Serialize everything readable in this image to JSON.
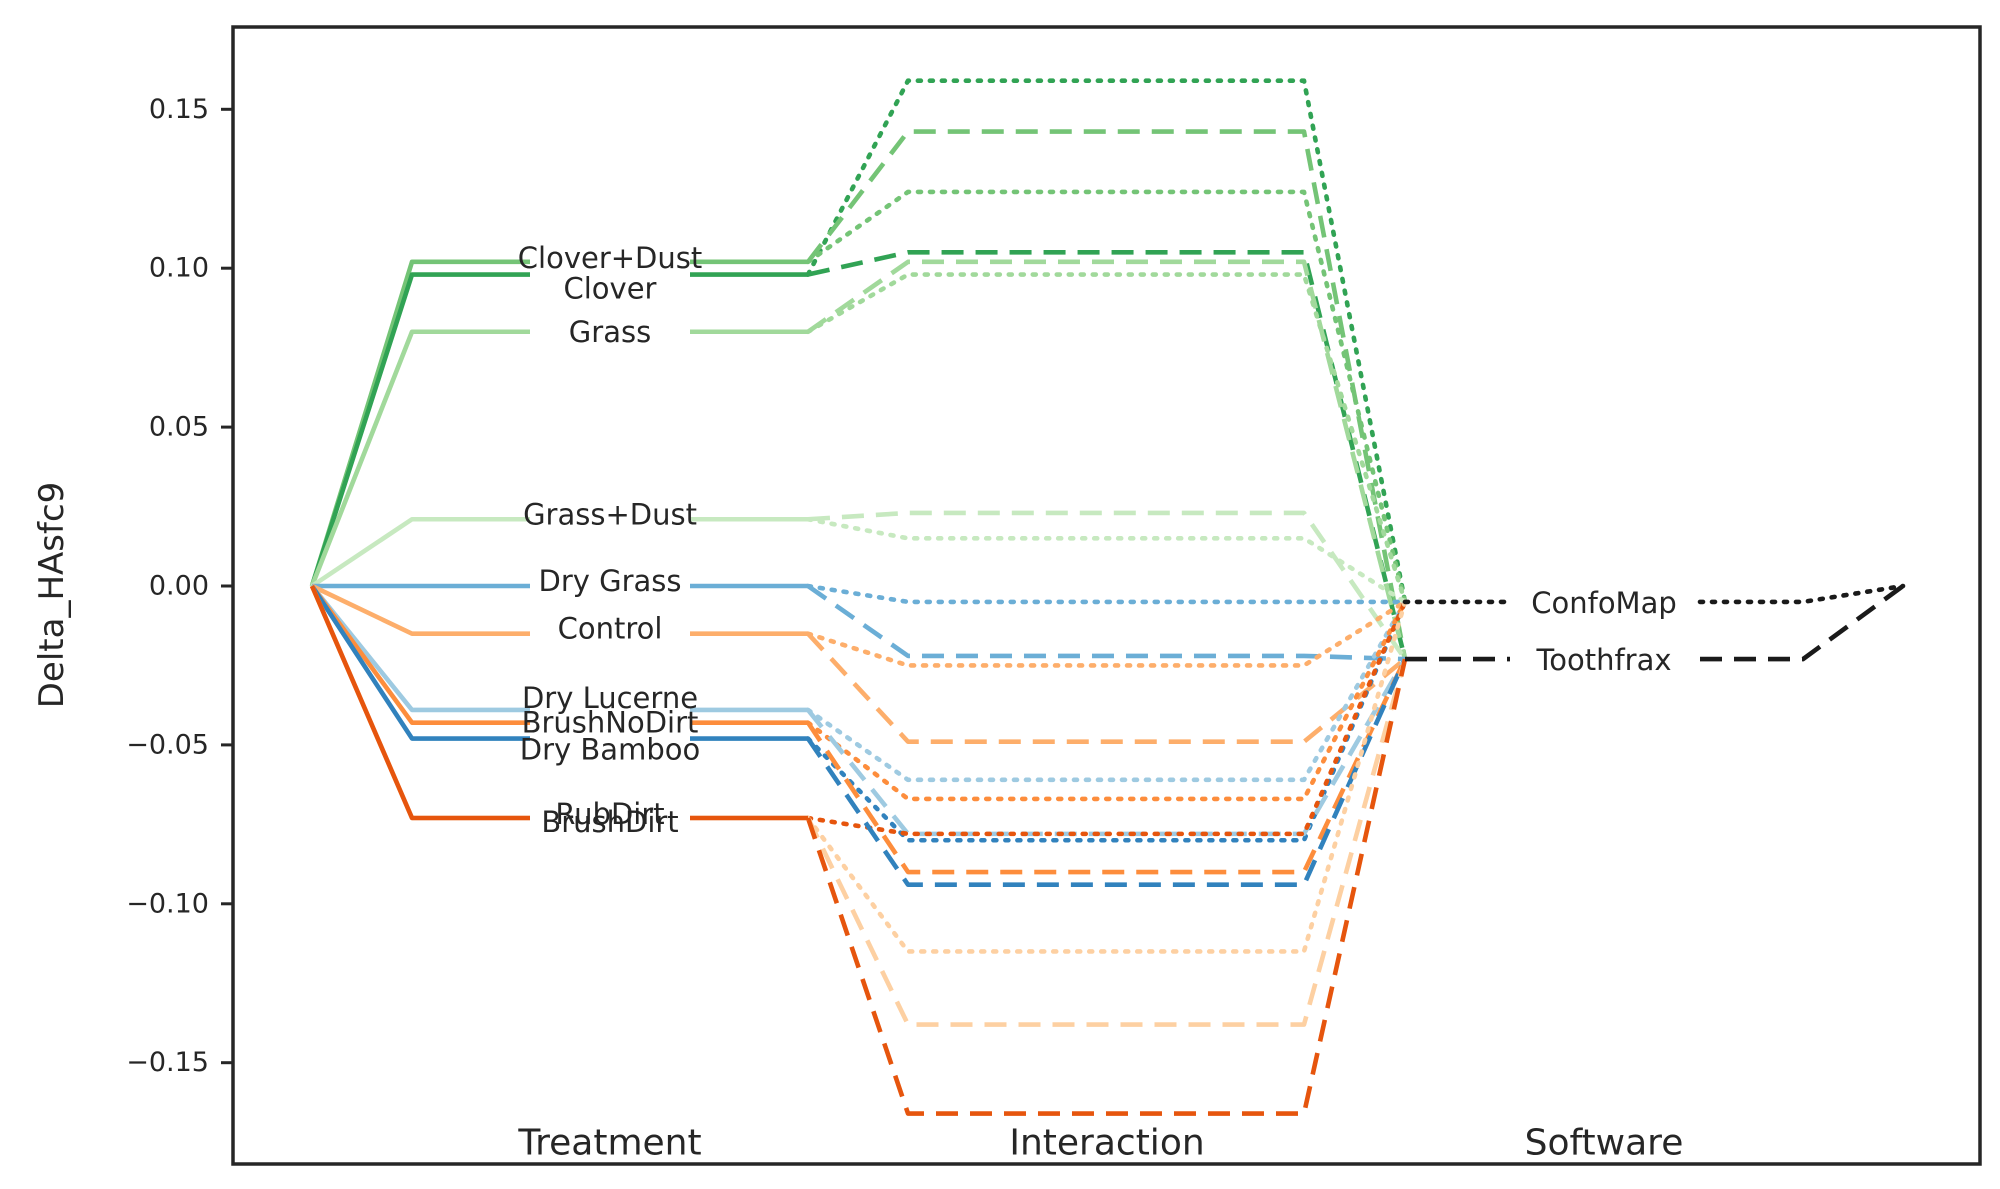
{
  "chart_data": {
    "type": "line",
    "ylabel": "Delta_HAsfc9",
    "xlabel": "",
    "title": "",
    "ylim": [
      -0.181,
      0.176
    ],
    "yticks": [
      0.15,
      0.1,
      0.05,
      0.0,
      -0.05,
      -0.1,
      -0.15
    ],
    "ytick_labels": [
      "0.15",
      "0.10",
      "0.05",
      "0.00",
      "−0.05",
      "−0.10",
      "−0.15"
    ],
    "group_labels": [
      "Treatment",
      "Interaction",
      "Software"
    ],
    "grid": false,
    "treatment_series": [
      {
        "label": "Clover+Dust",
        "value": 0.102,
        "color": "#74c476"
      },
      {
        "label": "Clover",
        "value": 0.098,
        "color": "#31a354"
      },
      {
        "label": "Grass",
        "value": 0.08,
        "color": "#a1d99b"
      },
      {
        "label": "Grass+Dust",
        "value": 0.021,
        "color": "#c7e9c0"
      },
      {
        "label": "Dry Grass",
        "value": 0.0,
        "color": "#6baed6"
      },
      {
        "label": "Control",
        "value": -0.015,
        "color": "#fdae6b"
      },
      {
        "label": "Dry Lucerne",
        "value": -0.039,
        "color": "#9ecae1"
      },
      {
        "label": "BrushNoDirt",
        "value": -0.043,
        "color": "#fd8d3c"
      },
      {
        "label": "Dry Bamboo",
        "value": -0.048,
        "color": "#3182bd"
      },
      {
        "label": "RubDirt",
        "value": -0.073,
        "color": "#fdd0a2"
      },
      {
        "label": "BrushDirt",
        "value": -0.073,
        "color": "#e6550d"
      }
    ],
    "interaction_series": [
      {
        "treatment": "Clover",
        "software": "ConfoMap",
        "value": 0.159,
        "color": "#31a354",
        "style": "dotted"
      },
      {
        "treatment": "Clover+Dust",
        "software": "Toothfrax",
        "value": 0.143,
        "color": "#74c476",
        "style": "dashed"
      },
      {
        "treatment": "Clover+Dust",
        "software": "ConfoMap",
        "value": 0.124,
        "color": "#74c476",
        "style": "dotted"
      },
      {
        "treatment": "Clover",
        "software": "Toothfrax",
        "value": 0.105,
        "color": "#31a354",
        "style": "dashed"
      },
      {
        "treatment": "Grass",
        "software": "Toothfrax",
        "value": 0.102,
        "color": "#a1d99b",
        "style": "dashed"
      },
      {
        "treatment": "Grass",
        "software": "ConfoMap",
        "value": 0.098,
        "color": "#a1d99b",
        "style": "dotted"
      },
      {
        "treatment": "Grass+Dust",
        "software": "Toothfrax",
        "value": 0.023,
        "color": "#c7e9c0",
        "style": "dashed"
      },
      {
        "treatment": "Grass+Dust",
        "software": "ConfoMap",
        "value": 0.015,
        "color": "#c7e9c0",
        "style": "dotted"
      },
      {
        "treatment": "Dry Grass",
        "software": "ConfoMap",
        "value": -0.005,
        "color": "#6baed6",
        "style": "dotted"
      },
      {
        "treatment": "Dry Grass",
        "software": "Toothfrax",
        "value": -0.022,
        "color": "#6baed6",
        "style": "dashed"
      },
      {
        "treatment": "Control",
        "software": "ConfoMap",
        "value": -0.025,
        "color": "#fdae6b",
        "style": "dotted"
      },
      {
        "treatment": "Control",
        "software": "Toothfrax",
        "value": -0.049,
        "color": "#fdae6b",
        "style": "dashed"
      },
      {
        "treatment": "Dry Lucerne",
        "software": "ConfoMap",
        "value": -0.061,
        "color": "#9ecae1",
        "style": "dotted"
      },
      {
        "treatment": "BrushNoDirt",
        "software": "ConfoMap",
        "value": -0.067,
        "color": "#fd8d3c",
        "style": "dotted"
      },
      {
        "treatment": "Dry Bamboo",
        "software": "ConfoMap",
        "value": -0.08,
        "color": "#3182bd",
        "style": "dotted"
      },
      {
        "treatment": "Dry Lucerne",
        "software": "Toothfrax",
        "value": -0.078,
        "color": "#9ecae1",
        "style": "dashed"
      },
      {
        "treatment": "BrushDirt",
        "software": "ConfoMap",
        "value": -0.078,
        "color": "#e6550d",
        "style": "dotted"
      },
      {
        "treatment": "BrushNoDirt",
        "software": "Toothfrax",
        "value": -0.09,
        "color": "#fd8d3c",
        "style": "dashed"
      },
      {
        "treatment": "Dry Bamboo",
        "software": "Toothfrax",
        "value": -0.094,
        "color": "#3182bd",
        "style": "dashed"
      },
      {
        "treatment": "RubDirt",
        "software": "ConfoMap",
        "value": -0.115,
        "color": "#fdd0a2",
        "style": "dotted"
      },
      {
        "treatment": "RubDirt",
        "software": "Toothfrax",
        "value": -0.138,
        "color": "#fdd0a2",
        "style": "dashed"
      },
      {
        "treatment": "BrushDirt",
        "software": "Toothfrax",
        "value": -0.166,
        "color": "#e6550d",
        "style": "dashed"
      }
    ],
    "software_series": [
      {
        "label": "ConfoMap",
        "value": -0.005,
        "color": "#1a1a1a",
        "style": "dotted"
      },
      {
        "label": "Toothfrax",
        "value": -0.023,
        "color": "#1a1a1a",
        "style": "dashed"
      }
    ]
  }
}
